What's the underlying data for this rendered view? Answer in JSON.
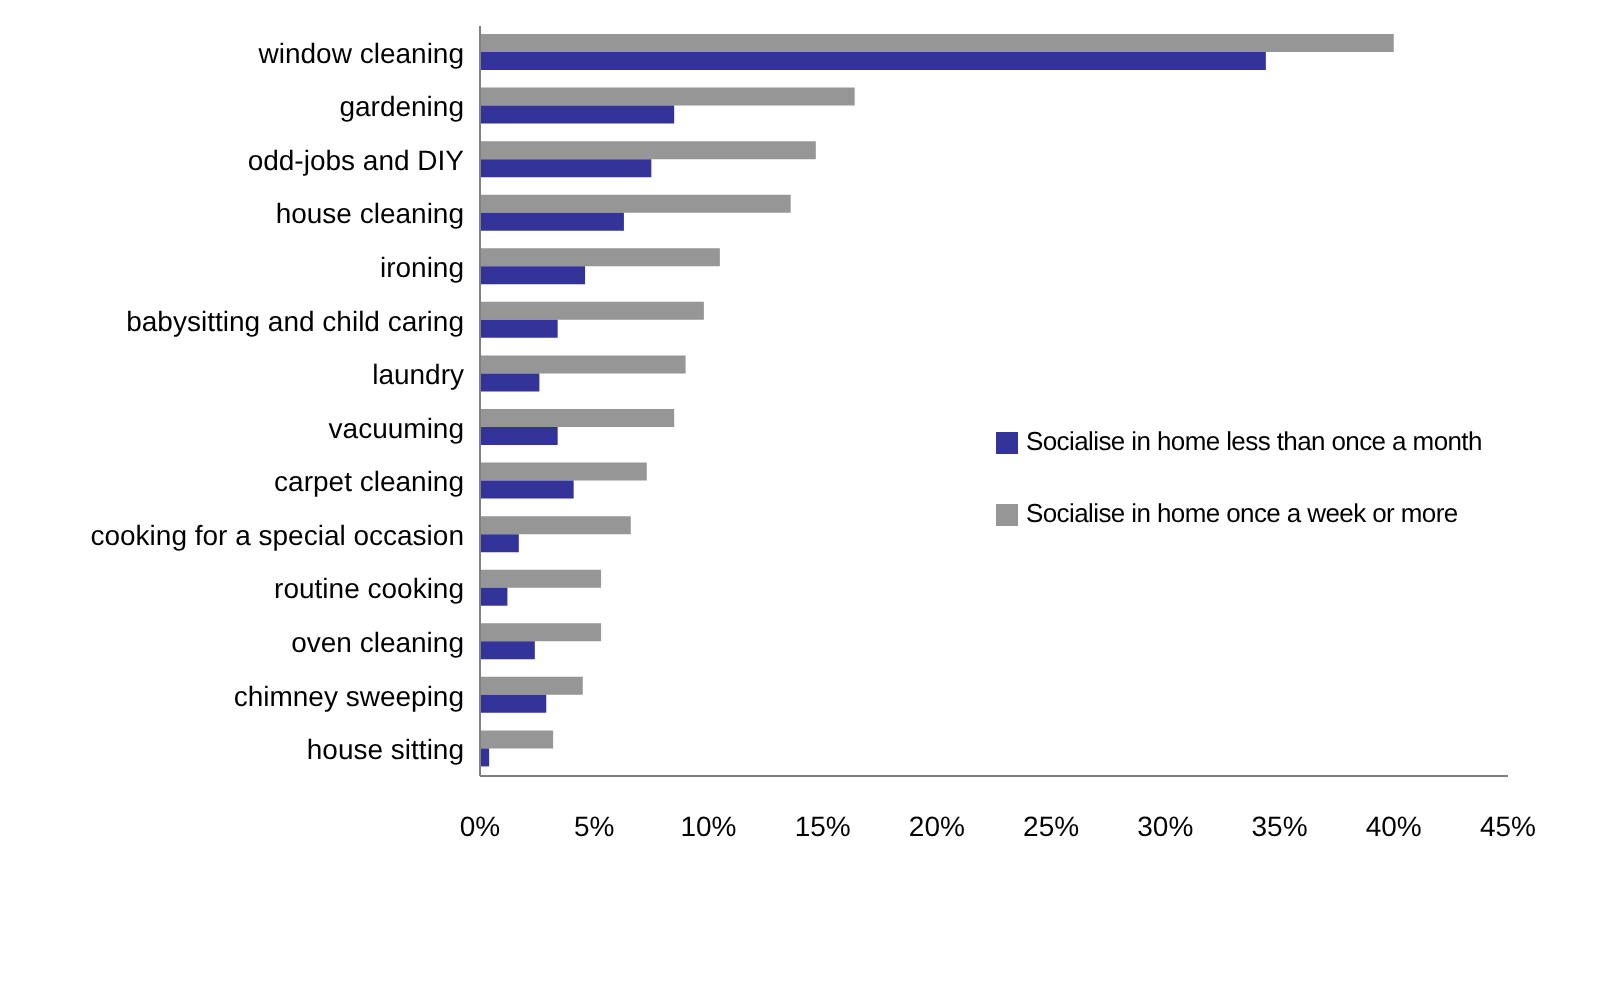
{
  "chart_data": {
    "type": "bar",
    "orientation": "horizontal",
    "categories": [
      "window cleaning",
      "gardening",
      "odd-jobs and DIY",
      "house cleaning",
      "ironing",
      "babysitting and child caring",
      "laundry",
      "vacuuming",
      "carpet cleaning",
      "cooking for a special occasion",
      "routine cooking",
      "oven cleaning",
      "chimney sweeping",
      "house sitting"
    ],
    "series": [
      {
        "name": "Socialise in home once a week or more",
        "color": "#969696",
        "values": [
          40,
          16.4,
          14.7,
          13.6,
          10.5,
          9.8,
          9.0,
          8.5,
          7.3,
          6.6,
          5.3,
          5.3,
          4.5,
          3.2
        ]
      },
      {
        "name": "Socialise in home less than once a month",
        "color": "#333399",
        "values": [
          34.4,
          8.5,
          7.5,
          6.3,
          4.6,
          3.4,
          2.6,
          3.4,
          4.1,
          1.7,
          1.2,
          2.4,
          2.9,
          0.4
        ]
      }
    ],
    "xlim": [
      0,
      45
    ],
    "xticks": [
      {
        "value": 0,
        "label": "0%"
      },
      {
        "value": 5,
        "label": "5%"
      },
      {
        "value": 10,
        "label": "10%"
      },
      {
        "value": 15,
        "label": "15%"
      },
      {
        "value": 20,
        "label": "20%"
      },
      {
        "value": 25,
        "label": "25%"
      },
      {
        "value": 30,
        "label": "30%"
      },
      {
        "value": 35,
        "label": "35%"
      },
      {
        "value": 40,
        "label": "40%"
      },
      {
        "value": 45,
        "label": "45%"
      }
    ],
    "grid": false,
    "legend": "right"
  }
}
